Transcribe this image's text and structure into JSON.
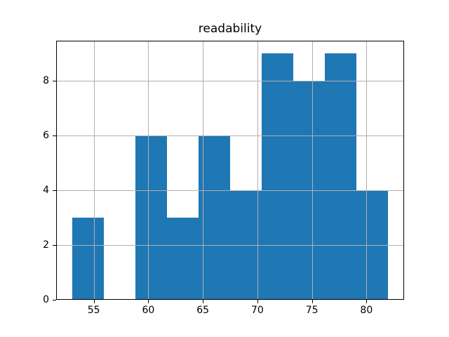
{
  "figure": {
    "title": "readability"
  },
  "chart_data": {
    "type": "bar",
    "subtype": "histogram",
    "title": "readability",
    "xlabel": "",
    "ylabel": "",
    "bin_edges": [
      53.0,
      55.9,
      58.8,
      61.7,
      64.6,
      67.5,
      70.4,
      73.3,
      76.2,
      79.1,
      82.0
    ],
    "counts": [
      3,
      0,
      6,
      3,
      6,
      4,
      9,
      8,
      9,
      4
    ],
    "xticks": [
      55,
      60,
      65,
      70,
      75,
      80
    ],
    "yticks": [
      0,
      2,
      4,
      6,
      8
    ],
    "xlim": [
      51.55,
      83.45
    ],
    "ylim": [
      0,
      9.45
    ],
    "grid": true,
    "grid_above_bars": true,
    "legend": false,
    "bar_color": "#1f77b4",
    "grid_color": "#b0b0b0",
    "spine_color": "#000000",
    "background_color": "#ffffff"
  }
}
